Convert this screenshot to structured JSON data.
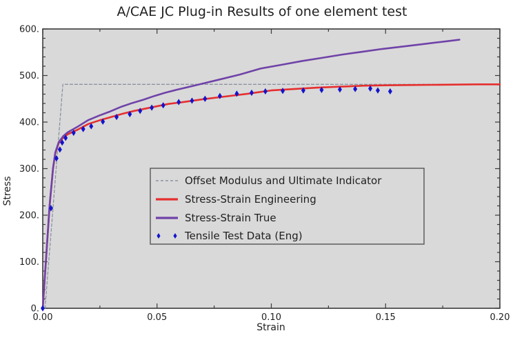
{
  "title": "A/CAE JC Plug-in Results of one element test",
  "axes": {
    "x": {
      "label": "Strain",
      "tick_labels": [
        "0.00",
        "0.05",
        "0.10",
        "0.15",
        "0.20"
      ],
      "tick_values": [
        0,
        0.05,
        0.1,
        0.15,
        0.2
      ],
      "minor_step": 0.025,
      "min": 0,
      "max": 0.2
    },
    "y": {
      "label": "Stress",
      "tick_labels": [
        "0.",
        "100.",
        "200.",
        "300.",
        "400.",
        "500.",
        "600."
      ],
      "tick_values": [
        0,
        100,
        200,
        300,
        400,
        500,
        600
      ],
      "minor_step": 20,
      "min": 0,
      "max": 600
    }
  },
  "colors": {
    "page_background": "#ffffff",
    "plot_background": "#d9d9d9",
    "frame": "#3a3a3a",
    "text": "#1f1f1f",
    "offset_line": "#8a93a0",
    "engineering_line": "#e62e2e",
    "true_line": "#6f42a8",
    "tensile_marker": "#1414cc",
    "legend_border": "#555555"
  },
  "legend": {
    "items": [
      {
        "label": "Offset Modulus and Ultimate Indicator",
        "swatch": "dashed-line"
      },
      {
        "label": "Stress-Strain Engineering",
        "swatch": "solid-line"
      },
      {
        "label": "Stress-Strain True",
        "swatch": "solid-line"
      },
      {
        "label": "Tensile Test Data (Eng)",
        "swatch": "diamond-markers"
      }
    ]
  },
  "chart_data": {
    "type": "line",
    "title": "A/CAE JC Plug-in Results of one element test",
    "xlabel": "Strain",
    "ylabel": "Stress",
    "xlim": [
      0,
      0.2
    ],
    "ylim": [
      0,
      600
    ],
    "grid": false,
    "legend_position": "center",
    "series": [
      {
        "name": "Offset Modulus and Ultimate Indicator",
        "type": "line",
        "style": "dashed",
        "color": "#8a93a0",
        "width": 1.3,
        "points": [
          [
            0.001,
            0
          ],
          [
            0.0088,
            481
          ],
          [
            0.2,
            481
          ]
        ]
      },
      {
        "name": "Stress-Strain Engineering",
        "type": "line",
        "style": "solid",
        "color": "#e62e2e",
        "width": 2.6,
        "points": [
          [
            0,
            0
          ],
          [
            0.0015,
            110
          ],
          [
            0.003,
            220
          ],
          [
            0.0045,
            300
          ],
          [
            0.0055,
            333
          ],
          [
            0.007,
            355
          ],
          [
            0.009,
            367
          ],
          [
            0.011,
            374
          ],
          [
            0.015,
            383
          ],
          [
            0.02,
            396
          ],
          [
            0.025,
            404
          ],
          [
            0.03,
            411
          ],
          [
            0.035,
            418
          ],
          [
            0.04,
            424
          ],
          [
            0.045,
            429
          ],
          [
            0.05,
            434
          ],
          [
            0.055,
            439
          ],
          [
            0.06,
            442
          ],
          [
            0.07,
            449
          ],
          [
            0.08,
            455
          ],
          [
            0.09,
            461
          ],
          [
            0.1,
            468
          ],
          [
            0.11,
            471
          ],
          [
            0.12,
            474
          ],
          [
            0.13,
            476
          ],
          [
            0.14,
            478
          ],
          [
            0.15,
            479
          ],
          [
            0.16,
            479.5
          ],
          [
            0.17,
            480
          ],
          [
            0.18,
            480.5
          ],
          [
            0.19,
            481
          ],
          [
            0.2,
            481
          ]
        ]
      },
      {
        "name": "Stress-Strain True",
        "type": "line",
        "style": "solid",
        "color": "#6f42a8",
        "width": 2.6,
        "points": [
          [
            0,
            0
          ],
          [
            0.0015,
            110
          ],
          [
            0.003,
            221
          ],
          [
            0.0045,
            301
          ],
          [
            0.0055,
            335
          ],
          [
            0.007,
            357
          ],
          [
            0.009,
            370
          ],
          [
            0.0109,
            378
          ],
          [
            0.0149,
            389
          ],
          [
            0.0198,
            404
          ],
          [
            0.0247,
            414
          ],
          [
            0.0296,
            423
          ],
          [
            0.0344,
            433
          ],
          [
            0.0392,
            441
          ],
          [
            0.044,
            448
          ],
          [
            0.0488,
            456
          ],
          [
            0.0535,
            463
          ],
          [
            0.0583,
            469
          ],
          [
            0.0677,
            480
          ],
          [
            0.077,
            491
          ],
          [
            0.0862,
            502
          ],
          [
            0.0953,
            515
          ],
          [
            0.1044,
            523
          ],
          [
            0.1133,
            531
          ],
          [
            0.1222,
            538
          ],
          [
            0.131,
            545
          ],
          [
            0.1398,
            551
          ],
          [
            0.1484,
            557
          ],
          [
            0.157,
            562
          ],
          [
            0.1655,
            567
          ],
          [
            0.174,
            572
          ],
          [
            0.1823,
            577
          ]
        ]
      },
      {
        "name": "Tensile Test Data (Eng)",
        "type": "scatter",
        "marker": "diamond",
        "color": "#1414cc",
        "points": [
          [
            0,
            0
          ],
          [
            0.0036,
            215
          ],
          [
            0.006,
            322
          ],
          [
            0.0075,
            341
          ],
          [
            0.0085,
            356
          ],
          [
            0.01,
            366
          ],
          [
            0.0135,
            377
          ],
          [
            0.0177,
            385
          ],
          [
            0.0212,
            391
          ],
          [
            0.0263,
            401
          ],
          [
            0.0323,
            411
          ],
          [
            0.0381,
            417
          ],
          [
            0.0426,
            424
          ],
          [
            0.0477,
            431
          ],
          [
            0.0527,
            436
          ],
          [
            0.0595,
            443
          ],
          [
            0.0653,
            446
          ],
          [
            0.071,
            450
          ],
          [
            0.0775,
            456
          ],
          [
            0.0849,
            461
          ],
          [
            0.0914,
            463
          ],
          [
            0.0974,
            466
          ],
          [
            0.105,
            467
          ],
          [
            0.114,
            468
          ],
          [
            0.122,
            469
          ],
          [
            0.13,
            470
          ],
          [
            0.1367,
            471
          ],
          [
            0.1433,
            472
          ],
          [
            0.1466,
            468
          ],
          [
            0.152,
            466
          ]
        ]
      }
    ]
  }
}
